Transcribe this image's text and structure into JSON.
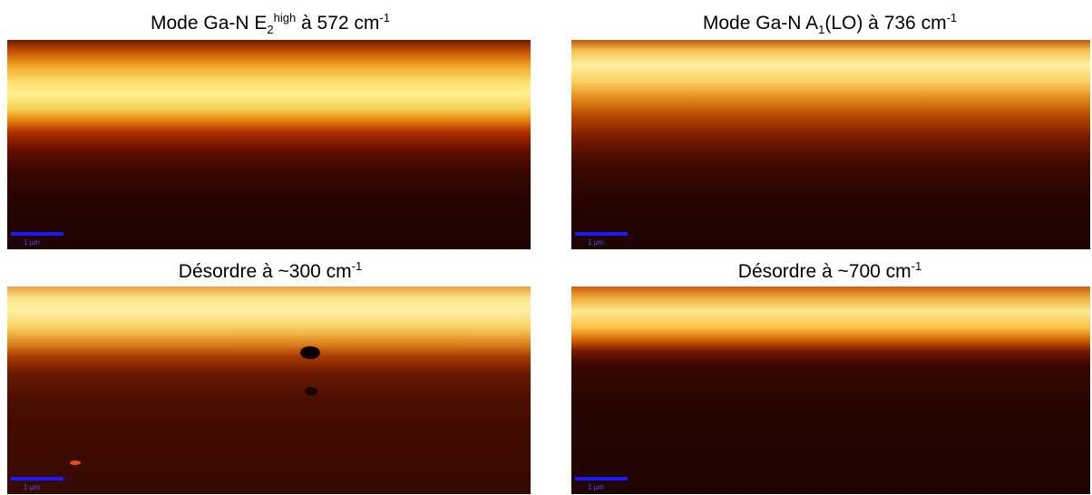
{
  "panels": [
    {
      "title": [
        {
          "text": "Mode Ga-N E",
          "style": "normal"
        },
        {
          "text": "2",
          "style": "sub"
        },
        {
          "text": "high",
          "style": "sup"
        },
        {
          "text": " à 572 cm",
          "style": "normal"
        },
        {
          "text": "-1",
          "style": "sup"
        }
      ],
      "scale_label": "1 µm"
    },
    {
      "title": [
        {
          "text": "Mode Ga-N A",
          "style": "normal"
        },
        {
          "text": "1",
          "style": "sub"
        },
        {
          "text": "(LO) à 736 cm",
          "style": "normal"
        },
        {
          "text": "-1",
          "style": "sup"
        }
      ],
      "scale_label": "1 µm"
    },
    {
      "title": [
        {
          "text": "Désordre à ~300 cm",
          "style": "normal"
        },
        {
          "text": "-1",
          "style": "sup"
        }
      ],
      "scale_label": "1 µm"
    },
    {
      "title": [
        {
          "text": "Désordre à ~700 cm",
          "style": "normal"
        },
        {
          "text": "-1",
          "style": "sup"
        }
      ],
      "scale_label": "1 µm"
    }
  ]
}
